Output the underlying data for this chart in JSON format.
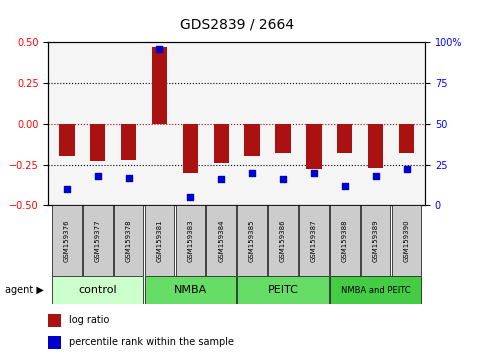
{
  "title": "GDS2839 / 2664",
  "samples": [
    "GSM159376",
    "GSM159377",
    "GSM159378",
    "GSM159381",
    "GSM159383",
    "GSM159384",
    "GSM159385",
    "GSM159386",
    "GSM159387",
    "GSM159388",
    "GSM159389",
    "GSM159390"
  ],
  "log_ratios": [
    -0.2,
    -0.23,
    -0.22,
    0.47,
    -0.3,
    -0.24,
    -0.2,
    -0.18,
    -0.28,
    -0.18,
    -0.27,
    -0.18
  ],
  "percentile_ranks": [
    10,
    18,
    17,
    96,
    5,
    16,
    20,
    16,
    20,
    12,
    18,
    22
  ],
  "bar_color": "#aa1111",
  "dot_color": "#0000cc",
  "ylim_left": [
    -0.5,
    0.5
  ],
  "ylim_right": [
    0,
    100
  ],
  "yticks_left": [
    -0.5,
    -0.25,
    0,
    0.25,
    0.5
  ],
  "yticks_right": [
    0,
    25,
    50,
    75,
    100
  ],
  "groups": [
    {
      "label": "control",
      "start": 0,
      "end": 3,
      "color": "#ccffcc"
    },
    {
      "label": "NMBA",
      "start": 3,
      "end": 6,
      "color": "#66dd66"
    },
    {
      "label": "PEITC",
      "start": 6,
      "end": 9,
      "color": "#66dd66"
    },
    {
      "label": "NMBA and PEITC",
      "start": 9,
      "end": 12,
      "color": "#44cc44"
    }
  ],
  "hline_color_zero": "#cc0000",
  "background_plot": "#f5f5f5"
}
